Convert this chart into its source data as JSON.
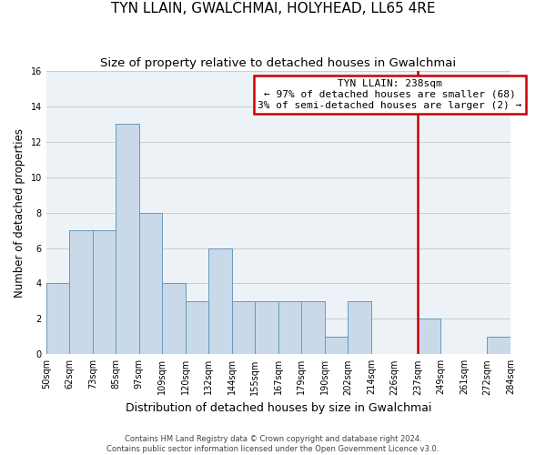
{
  "title": "TYN LLAIN, GWALCHMAI, HOLYHEAD, LL65 4RE",
  "subtitle": "Size of property relative to detached houses in Gwalchmai",
  "xlabel": "Distribution of detached houses by size in Gwalchmai",
  "ylabel": "Number of detached properties",
  "bins": [
    "50sqm",
    "62sqm",
    "73sqm",
    "85sqm",
    "97sqm",
    "109sqm",
    "120sqm",
    "132sqm",
    "144sqm",
    "155sqm",
    "167sqm",
    "179sqm",
    "190sqm",
    "202sqm",
    "214sqm",
    "226sqm",
    "237sqm",
    "249sqm",
    "261sqm",
    "272sqm",
    "284sqm"
  ],
  "counts": [
    4,
    7,
    7,
    13,
    8,
    4,
    3,
    6,
    3,
    3,
    3,
    3,
    1,
    3,
    0,
    0,
    2,
    0,
    0,
    1
  ],
  "bar_color": "#c9d9ea",
  "bar_edge_color": "#6699bb",
  "grid_color": "#cccccc",
  "bg_color": "#edf2f7",
  "vline_color": "#cc0000",
  "annotation_title": "TYN LLAIN: 238sqm",
  "annotation_line1": "← 97% of detached houses are smaller (68)",
  "annotation_line2": "3% of semi-detached houses are larger (2) →",
  "annotation_box_color": "#cc0000",
  "footer_line1": "Contains HM Land Registry data © Crown copyright and database right 2024.",
  "footer_line2": "Contains public sector information licensed under the Open Government Licence v3.0.",
  "ylim": [
    0,
    16
  ],
  "yticks": [
    0,
    2,
    4,
    6,
    8,
    10,
    12,
    14,
    16
  ],
  "title_fontsize": 11,
  "subtitle_fontsize": 9.5,
  "xlabel_fontsize": 9,
  "ylabel_fontsize": 8.5,
  "tick_fontsize": 7,
  "footer_fontsize": 6,
  "annot_fontsize": 8
}
